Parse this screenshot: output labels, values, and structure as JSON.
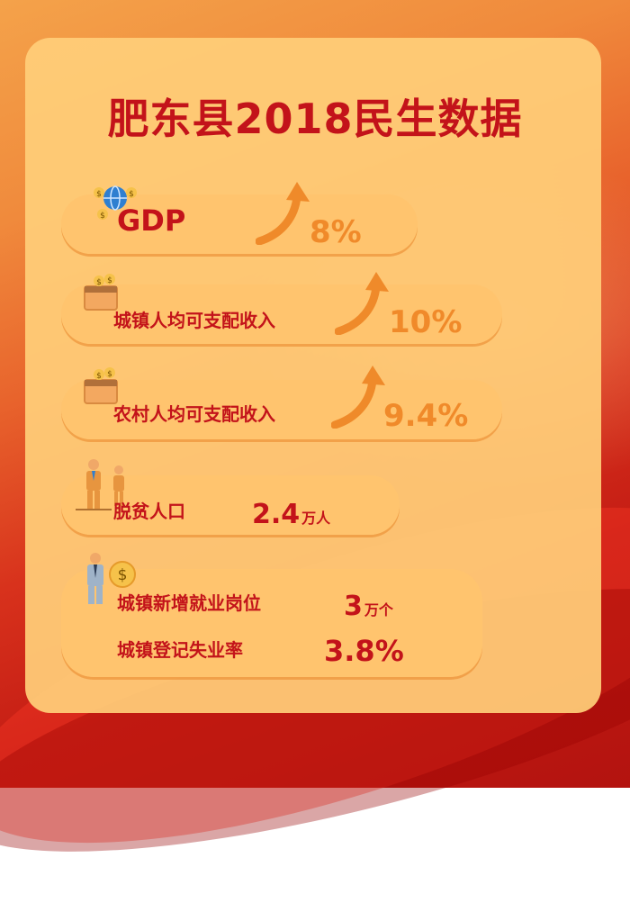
{
  "title": "肥东县2018民生数据",
  "items": [
    {
      "label": "GDP",
      "value": "8%",
      "icon": "globe-money-icon"
    },
    {
      "label": "城镇人均可支配收入",
      "value": "10%",
      "icon": "wallet-coins-icon"
    },
    {
      "label": "农村人均可支配收入",
      "value": "9.4%",
      "icon": "wallet-coins-icon"
    },
    {
      "label": "脱贫人口",
      "value": "2.4",
      "unit": "万人",
      "icon": "people-icon"
    },
    {
      "label": "城镇新增就业岗位",
      "value": "3",
      "unit": "万个",
      "icon": "worker-money-icon"
    },
    {
      "label": "城镇登记失业率",
      "value": "3.8%"
    }
  ],
  "colors": {
    "title": "#c3131a",
    "accent": "#f08a2a",
    "panel": "#ffce78"
  }
}
